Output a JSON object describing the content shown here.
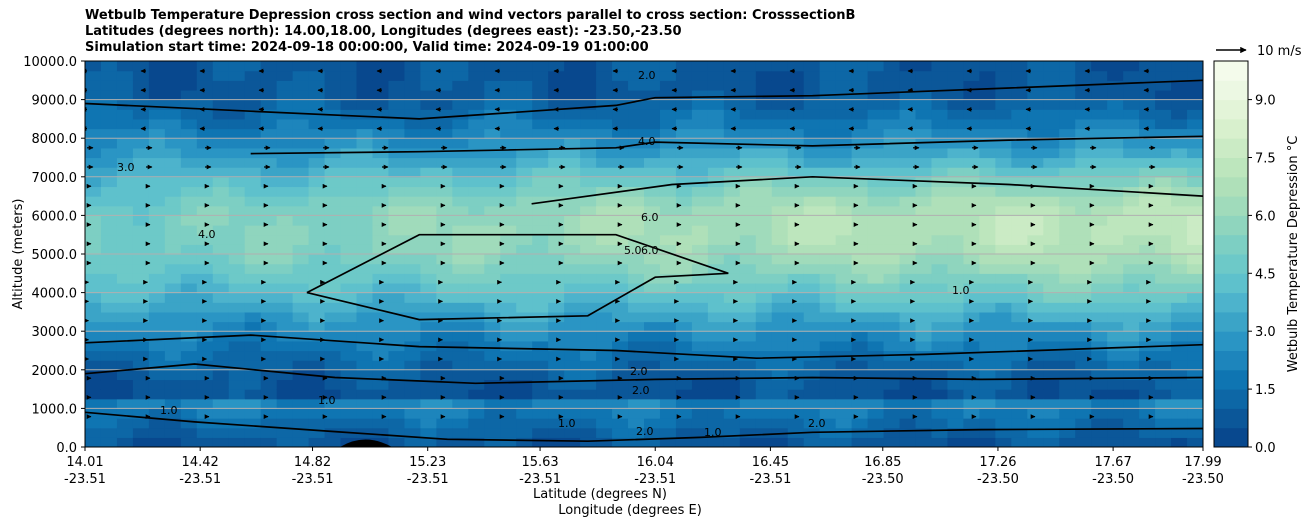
{
  "chart_data": {
    "type": "contour",
    "title_lines": [
      "Wetbulb Temperature Depression cross section and wind vectors parallel to cross section: CrosssectionB",
      "Latitudes (degrees north): 14.00,18.00, Longitudes (degrees east): -23.50,-23.50",
      "Simulation start time: 2024-09-18 00:00:00, Valid time: 2024-09-19 01:00:00"
    ],
    "ylabel": "Altitude (meters)",
    "xlabel_lat": "Latitude (degrees N)",
    "xlabel_lon": "Longitude (degrees E)",
    "ylim": [
      0,
      10000
    ],
    "y_ticks": [
      "0.0",
      "1000.0",
      "2000.0",
      "3000.0",
      "4000.0",
      "5000.0",
      "6000.0",
      "7000.0",
      "8000.0",
      "9000.0",
      "10000.0"
    ],
    "x_ticks_lat": [
      "14.01",
      "14.42",
      "14.82",
      "15.23",
      "15.63",
      "16.04",
      "16.45",
      "16.85",
      "17.26",
      "17.67",
      "17.99"
    ],
    "x_ticks_lon": [
      "-23.51",
      "-23.51",
      "-23.51",
      "-23.51",
      "-23.51",
      "-23.51",
      "-23.51",
      "-23.50",
      "-23.50",
      "-23.50",
      "-23.50"
    ],
    "colorbar": {
      "label": "Wetbulb Temperature Depression °C",
      "range": [
        0,
        10
      ],
      "ticks": [
        "0.0",
        "1.5",
        "3.0",
        "4.5",
        "6.0",
        "7.5",
        "9.0"
      ],
      "colors": [
        "#08488e",
        "#0b5799",
        "#0d67a6",
        "#0f75b2",
        "#1d85bc",
        "#2a95c4",
        "#3ba4c7",
        "#4db3cc",
        "#5ec1cc",
        "#6dc9c8",
        "#7dcfc3",
        "#8fd5be",
        "#a0dbbb",
        "#afe0b9",
        "#bde6bd",
        "#cbebc5",
        "#d8f0cd",
        "#e3f4d8",
        "#ecf8e3",
        "#f4fbeb"
      ]
    },
    "wind_key": "10 m/s",
    "contour_labels": [
      "2.0",
      "4.0",
      "6.0",
      "5.0",
      "6.0",
      "2.0",
      "3.0",
      "4.0",
      "2.0",
      "1.0",
      "1.0",
      "2.0",
      "1.0",
      "1.0",
      "2.0",
      "1.0"
    ],
    "series": [
      {
        "name": "contour 1.0",
        "points": [
          [
            14.01,
            900
          ],
          [
            14.4,
            650
          ],
          [
            14.9,
            400
          ],
          [
            15.3,
            200
          ],
          [
            15.8,
            150
          ],
          [
            16.2,
            250
          ],
          [
            16.6,
            380
          ],
          [
            17.2,
            450
          ],
          [
            17.99,
            480
          ]
        ]
      },
      {
        "name": "contour 2.0",
        "points": [
          [
            14.01,
            1900
          ],
          [
            14.4,
            2150
          ],
          [
            14.9,
            1800
          ],
          [
            15.4,
            1650
          ],
          [
            16.04,
            1750
          ],
          [
            16.6,
            1800
          ],
          [
            17.2,
            1750
          ],
          [
            17.99,
            1800
          ]
        ]
      },
      {
        "name": "contour 4.0 (lower)",
        "points": [
          [
            14.01,
            2700
          ],
          [
            14.6,
            2900
          ],
          [
            15.2,
            2600
          ],
          [
            15.9,
            2500
          ],
          [
            16.4,
            2300
          ],
          [
            17.0,
            2400
          ],
          [
            17.99,
            2650
          ]
        ]
      },
      {
        "name": "contour 4.0 (upper)",
        "points": [
          [
            14.6,
            7600
          ],
          [
            15.2,
            7650
          ],
          [
            15.9,
            7750
          ],
          [
            16.04,
            7900
          ],
          [
            16.6,
            7800
          ],
          [
            17.3,
            7950
          ],
          [
            17.99,
            8050
          ]
        ]
      },
      {
        "name": "contour 5.0",
        "points": [
          [
            14.8,
            4000
          ],
          [
            15.2,
            3300
          ],
          [
            15.8,
            3400
          ],
          [
            16.04,
            4400
          ],
          [
            16.3,
            4500
          ],
          [
            15.9,
            5500
          ],
          [
            15.2,
            5500
          ],
          [
            14.8,
            4000
          ]
        ]
      },
      {
        "name": "contour 6.0",
        "points": [
          [
            15.6,
            6300
          ],
          [
            16.1,
            6800
          ],
          [
            16.6,
            7000
          ],
          [
            17.3,
            6800
          ],
          [
            17.99,
            6500
          ]
        ]
      },
      {
        "name": "contour 2.0 (upper)",
        "points": [
          [
            14.01,
            8900
          ],
          [
            14.6,
            8700
          ],
          [
            15.2,
            8500
          ],
          [
            15.9,
            8850
          ],
          [
            16.04,
            9050
          ],
          [
            16.6,
            9100
          ],
          [
            17.3,
            9300
          ],
          [
            17.99,
            9500
          ]
        ]
      }
    ]
  }
}
